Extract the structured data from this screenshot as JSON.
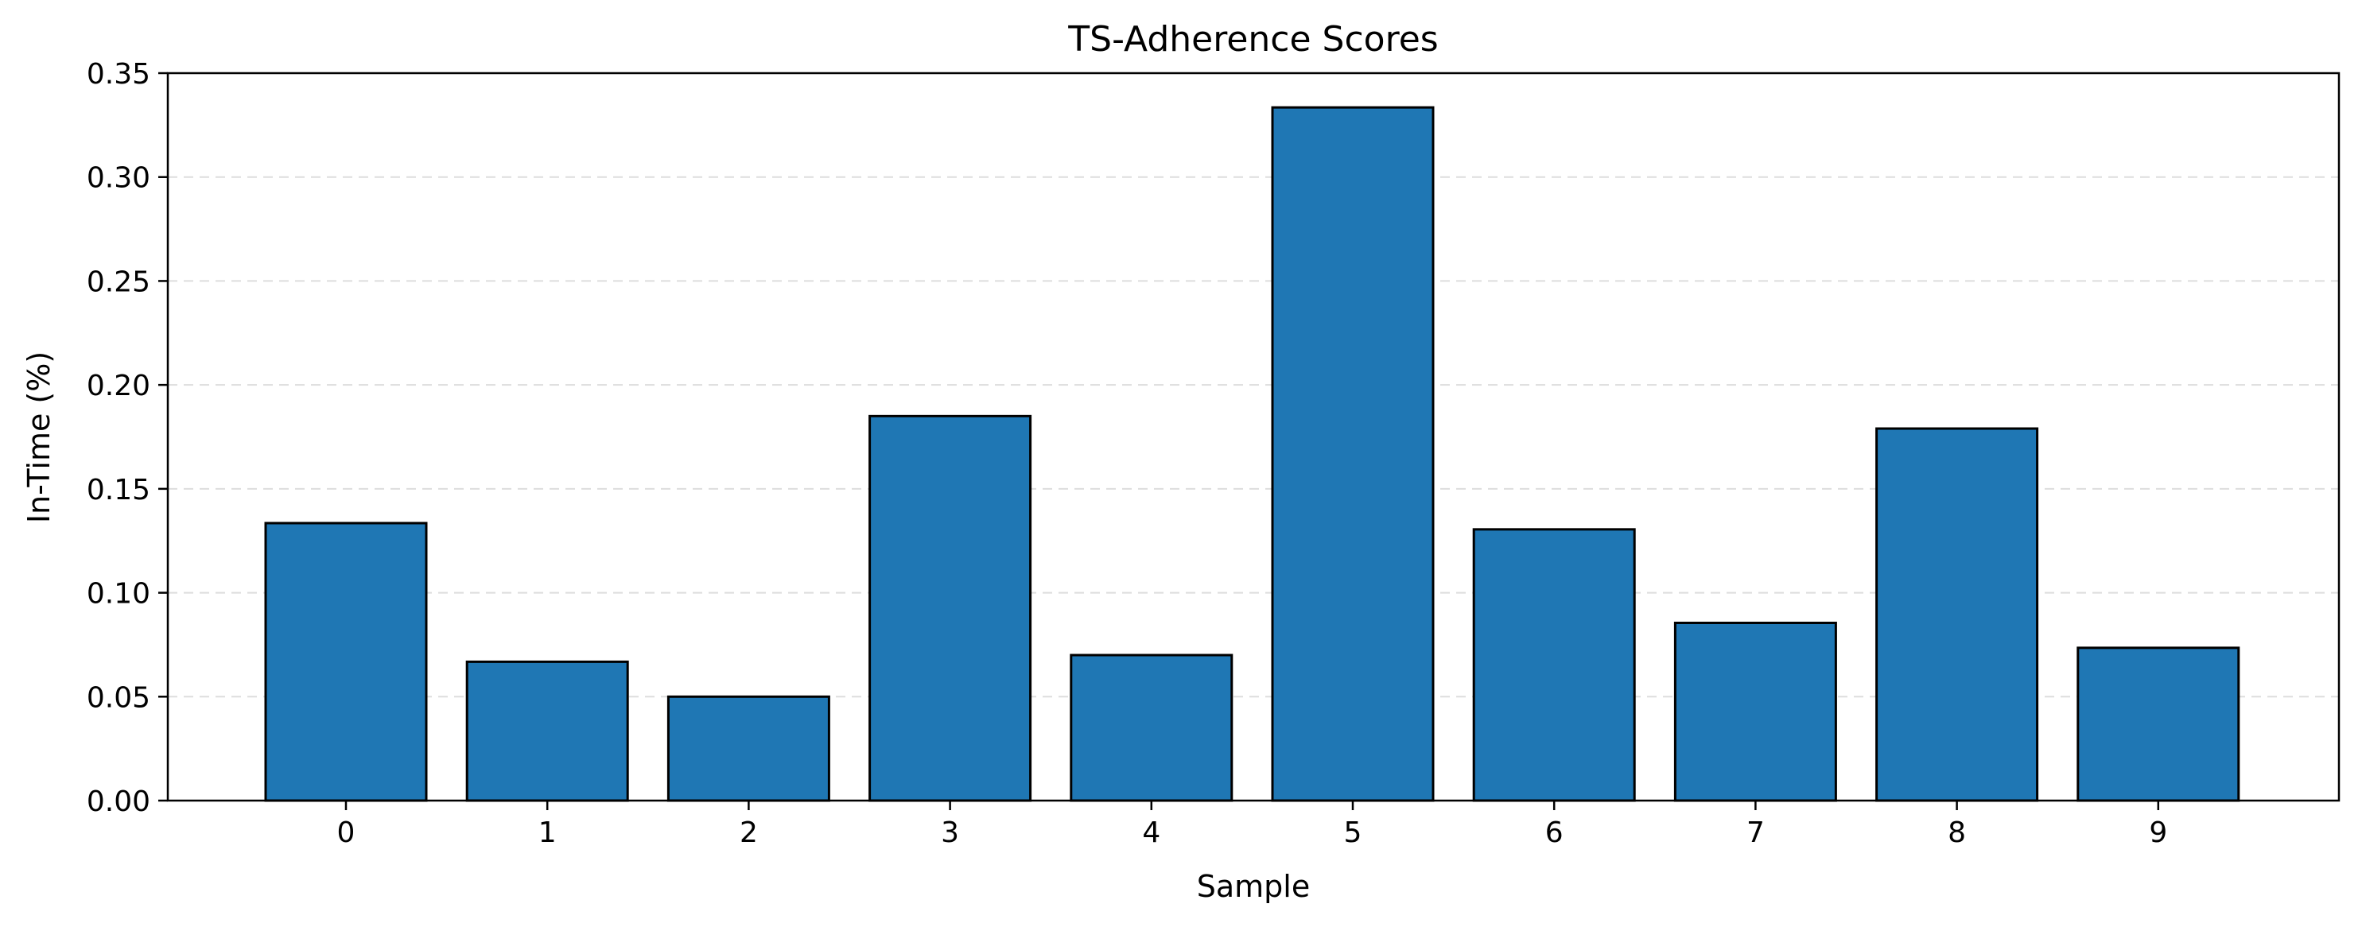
{
  "chart_data": {
    "type": "bar",
    "title": "TS-Adherence Scores",
    "xlabel": "Sample",
    "ylabel": "In-Time (%)",
    "categories": [
      "0",
      "1",
      "2",
      "3",
      "4",
      "5",
      "6",
      "7",
      "8",
      "9"
    ],
    "values": [
      0.1335,
      0.0668,
      0.05,
      0.185,
      0.07,
      0.3335,
      0.1305,
      0.0855,
      0.179,
      0.0735
    ],
    "ylim": [
      0,
      0.35
    ],
    "yticks": [
      "0.00",
      "0.05",
      "0.10",
      "0.15",
      "0.20",
      "0.25",
      "0.30",
      "0.35"
    ],
    "ytick_values": [
      0,
      0.05,
      0.1,
      0.15,
      0.2,
      0.25,
      0.3,
      0.35
    ],
    "grid": "y-dashed",
    "legend": "none",
    "colors": {
      "bar_fill": "#1f77b4",
      "bar_edge": "#000000",
      "grid": "#dddddd",
      "axes": "#000000"
    }
  }
}
